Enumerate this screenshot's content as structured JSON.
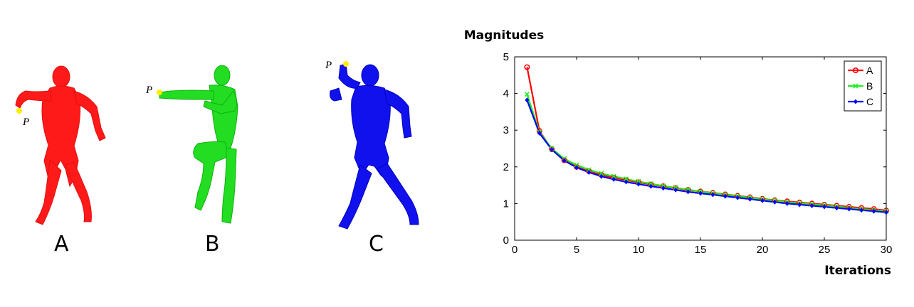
{
  "figures": [
    {
      "label": "A",
      "point_label": "P",
      "color": "#ff1a1a"
    },
    {
      "label": "B",
      "point_label": "P",
      "color": "#22dd22"
    },
    {
      "label": "C",
      "point_label": "P",
      "color": "#1111ee"
    }
  ],
  "point_color": "#ffee00",
  "chart_data": {
    "type": "line",
    "title": "Magnitudes",
    "xlabel": "Iterations",
    "ylabel": "",
    "xlim": [
      0,
      30
    ],
    "ylim": [
      0,
      5
    ],
    "xticks": [
      0,
      5,
      10,
      15,
      20,
      25,
      30
    ],
    "yticks": [
      0,
      1,
      2,
      3,
      4,
      5
    ],
    "grid": false,
    "legend_position": "top-right",
    "x": [
      1,
      2,
      3,
      4,
      5,
      6,
      7,
      8,
      9,
      10,
      11,
      12,
      13,
      14,
      15,
      16,
      17,
      18,
      19,
      20,
      21,
      22,
      23,
      24,
      25,
      26,
      27,
      28,
      29,
      30
    ],
    "series": [
      {
        "name": "A",
        "color": "#ff0000",
        "marker": "circle",
        "values": [
          4.72,
          2.98,
          2.48,
          2.18,
          2.0,
          1.88,
          1.78,
          1.71,
          1.64,
          1.58,
          1.52,
          1.47,
          1.42,
          1.37,
          1.33,
          1.29,
          1.25,
          1.21,
          1.17,
          1.13,
          1.09,
          1.06,
          1.03,
          1.0,
          0.97,
          0.94,
          0.91,
          0.88,
          0.85,
          0.81
        ]
      },
      {
        "name": "B",
        "color": "#22ee22",
        "marker": "x",
        "values": [
          3.98,
          2.95,
          2.5,
          2.22,
          2.05,
          1.92,
          1.82,
          1.74,
          1.67,
          1.6,
          1.54,
          1.48,
          1.43,
          1.38,
          1.33,
          1.28,
          1.24,
          1.2,
          1.16,
          1.12,
          1.08,
          1.04,
          1.01,
          0.98,
          0.95,
          0.92,
          0.88,
          0.85,
          0.82,
          0.79
        ]
      },
      {
        "name": "C",
        "color": "#0000ff",
        "marker": "diamond",
        "values": [
          3.82,
          2.92,
          2.47,
          2.17,
          1.98,
          1.85,
          1.74,
          1.66,
          1.59,
          1.53,
          1.47,
          1.42,
          1.37,
          1.32,
          1.28,
          1.24,
          1.2,
          1.16,
          1.12,
          1.08,
          1.04,
          1.0,
          0.97,
          0.94,
          0.91,
          0.88,
          0.85,
          0.82,
          0.79,
          0.76
        ]
      }
    ]
  }
}
